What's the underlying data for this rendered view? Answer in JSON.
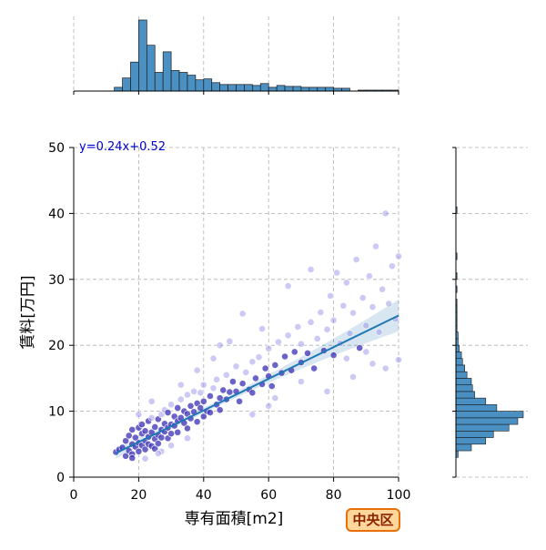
{
  "chart_data": {
    "type": "scatter",
    "xlabel": "専有面積[m2]",
    "ylabel": "賃料[万円]",
    "xlim": [
      0,
      100
    ],
    "ylim": [
      0,
      50
    ],
    "x_ticks": [
      "0",
      "20",
      "40",
      "60",
      "80",
      "100"
    ],
    "y_ticks": [
      "0",
      "10",
      "20",
      "30",
      "40",
      "50"
    ],
    "grid": true,
    "regression": {
      "label": "y=0.24x+0.52",
      "slope": 0.24,
      "intercept": 0.52,
      "x_range": [
        13,
        100
      ]
    },
    "ward_label": "中央区",
    "series": [
      {
        "points": [
          [
            13,
            3.8
          ],
          [
            14,
            4.2
          ],
          [
            15,
            4.5
          ],
          [
            16,
            3.2
          ],
          [
            16,
            5.5
          ],
          [
            17,
            4.0
          ],
          [
            17,
            6.3
          ],
          [
            18,
            5.0
          ],
          [
            18,
            3.5
          ],
          [
            18,
            7.2
          ],
          [
            19,
            4.6
          ],
          [
            19,
            6.0
          ],
          [
            20,
            5.2
          ],
          [
            20,
            3.9
          ],
          [
            20,
            7.5
          ],
          [
            21,
            4.8
          ],
          [
            21,
            6.6
          ],
          [
            21,
            8.0
          ],
          [
            22,
            5.5
          ],
          [
            22,
            4.2
          ],
          [
            22,
            7.0
          ],
          [
            23,
            6.1
          ],
          [
            23,
            5.0
          ],
          [
            23,
            8.5
          ],
          [
            24,
            6.8
          ],
          [
            24,
            4.7
          ],
          [
            24,
            9.0
          ],
          [
            25,
            5.8
          ],
          [
            25,
            7.6
          ],
          [
            25,
            4.3
          ],
          [
            26,
            6.4
          ],
          [
            26,
            8.8
          ],
          [
            26,
            5.1
          ],
          [
            27,
            7.2
          ],
          [
            27,
            9.5
          ],
          [
            27,
            6.0
          ],
          [
            28,
            6.9
          ],
          [
            28,
            8.1
          ],
          [
            28,
            10.2
          ],
          [
            29,
            7.5
          ],
          [
            29,
            5.9
          ],
          [
            29,
            9.8
          ],
          [
            30,
            8.0
          ],
          [
            30,
            6.6
          ],
          [
            30,
            11.0
          ],
          [
            31,
            7.8
          ],
          [
            31,
            9.2
          ],
          [
            32,
            8.5
          ],
          [
            32,
            10.5
          ],
          [
            32,
            6.8
          ],
          [
            33,
            9.0
          ],
          [
            33,
            11.8
          ],
          [
            34,
            8.2
          ],
          [
            34,
            10.0
          ],
          [
            35,
            9.6
          ],
          [
            35,
            12.5
          ],
          [
            35,
            7.4
          ],
          [
            36,
            10.8
          ],
          [
            36,
            8.9
          ],
          [
            37,
            9.9
          ],
          [
            37,
            13.0
          ],
          [
            38,
            11.2
          ],
          [
            38,
            8.4
          ],
          [
            39,
            10.5
          ],
          [
            39,
            12.8
          ],
          [
            40,
            11.5
          ],
          [
            40,
            9.2
          ],
          [
            40,
            14.0
          ],
          [
            41,
            10.0
          ],
          [
            42,
            12.3
          ],
          [
            42,
            9.8
          ],
          [
            43,
            13.5
          ],
          [
            44,
            11.0
          ],
          [
            44,
            14.8
          ],
          [
            45,
            12.0
          ],
          [
            45,
            10.2
          ],
          [
            46,
            13.2
          ],
          [
            47,
            15.5
          ],
          [
            47,
            11.8
          ],
          [
            48,
            12.9
          ],
          [
            49,
            14.5
          ],
          [
            50,
            13.0
          ],
          [
            50,
            16.8
          ],
          [
            51,
            11.5
          ],
          [
            52,
            14.2
          ],
          [
            53,
            15.9
          ],
          [
            54,
            13.3
          ],
          [
            55,
            17.5
          ],
          [
            55,
            12.8
          ],
          [
            56,
            15.0
          ],
          [
            57,
            18.2
          ],
          [
            58,
            14.1
          ],
          [
            59,
            16.5
          ],
          [
            60,
            15.3
          ],
          [
            60,
            19.5
          ],
          [
            61,
            13.8
          ],
          [
            62,
            17.0
          ],
          [
            63,
            20.5
          ],
          [
            64,
            15.8
          ],
          [
            65,
            18.3
          ],
          [
            66,
            21.5
          ],
          [
            67,
            16.2
          ],
          [
            68,
            19.0
          ],
          [
            69,
            22.8
          ],
          [
            70,
            17.4
          ],
          [
            70,
            20.2
          ],
          [
            72,
            18.8
          ],
          [
            73,
            23.5
          ],
          [
            74,
            16.5
          ],
          [
            75,
            21.0
          ],
          [
            76,
            25.0
          ],
          [
            77,
            19.2
          ],
          [
            78,
            22.4
          ],
          [
            79,
            27.5
          ],
          [
            80,
            18.5
          ],
          [
            80,
            23.8
          ],
          [
            81,
            31.0
          ],
          [
            82,
            20.3
          ],
          [
            83,
            26.0
          ],
          [
            84,
            29.5
          ],
          [
            85,
            21.8
          ],
          [
            86,
            24.9
          ],
          [
            87,
            33.0
          ],
          [
            88,
            19.6
          ],
          [
            89,
            27.2
          ],
          [
            90,
            23.0
          ],
          [
            91,
            30.5
          ],
          [
            92,
            25.8
          ],
          [
            93,
            35.0
          ],
          [
            94,
            22.0
          ],
          [
            95,
            28.5
          ],
          [
            96,
            40.0
          ],
          [
            97,
            26.3
          ],
          [
            98,
            32.0
          ],
          [
            99,
            24.0
          ],
          [
            100,
            33.5
          ],
          [
            96,
            16.5
          ],
          [
            84,
            18.0
          ],
          [
            78,
            13.0
          ],
          [
            58,
            22.5
          ],
          [
            52,
            24.8
          ],
          [
            45,
            20.0
          ],
          [
            66,
            29.0
          ],
          [
            73,
            31.5
          ],
          [
            62,
            12.0
          ],
          [
            90,
            19.0
          ],
          [
            27,
            3.9
          ],
          [
            30,
            4.8
          ],
          [
            35,
            5.9
          ],
          [
            20,
            9.5
          ],
          [
            24,
            11.5
          ],
          [
            18,
            2.9
          ],
          [
            22,
            2.8
          ],
          [
            26,
            3.6
          ],
          [
            33,
            14.0
          ],
          [
            38,
            16.2
          ],
          [
            43,
            18.0
          ],
          [
            48,
            20.6
          ],
          [
            55,
            9.5
          ],
          [
            60,
            10.8
          ],
          [
            70,
            14.5
          ],
          [
            86,
            15.2
          ],
          [
            92,
            17.2
          ],
          [
            100,
            17.8
          ]
        ]
      }
    ],
    "x_hist": {
      "bin_edges": [
        0,
        2.5,
        5,
        7.5,
        10,
        12.5,
        15,
        17.5,
        20,
        22.5,
        25,
        27.5,
        30,
        32.5,
        35,
        37.5,
        40,
        42.5,
        45,
        47.5,
        50,
        52.5,
        55,
        57.5,
        60,
        62.5,
        65,
        67.5,
        70,
        72.5,
        75,
        77.5,
        80,
        82.5,
        85,
        87.5,
        90,
        92.5,
        95,
        97.5,
        100
      ],
      "counts": [
        0,
        0,
        0,
        0,
        0,
        4,
        14,
        31,
        76,
        49,
        20,
        42,
        22,
        20,
        17,
        12,
        13,
        9,
        7,
        7,
        7,
        7,
        6,
        8,
        4,
        6,
        5,
        5,
        4,
        4,
        4,
        4,
        3,
        3,
        0,
        1,
        1,
        1,
        1,
        1
      ]
    },
    "y_hist": {
      "bin_edges": [
        0,
        1,
        2,
        3,
        4,
        5,
        6,
        7,
        8,
        9,
        10,
        11,
        12,
        13,
        14,
        15,
        16,
        17,
        18,
        19,
        20,
        21,
        22,
        23,
        24,
        25,
        26,
        27,
        28,
        29,
        30,
        31,
        32,
        33,
        34,
        35,
        36,
        37,
        38,
        39,
        40,
        41,
        42,
        43,
        44,
        45,
        46,
        47,
        48,
        49,
        50
      ],
      "counts": [
        0,
        0,
        0,
        2,
        14,
        27,
        34,
        48,
        56,
        61,
        37,
        27,
        17,
        15,
        14,
        10,
        8,
        6,
        5,
        3,
        2,
        2,
        1,
        1,
        1,
        1,
        1,
        0,
        1,
        0,
        1,
        0,
        0,
        1,
        0,
        0,
        0,
        0,
        0,
        0,
        1,
        0,
        0,
        0,
        0,
        0,
        0,
        0,
        0,
        0
      ]
    }
  }
}
